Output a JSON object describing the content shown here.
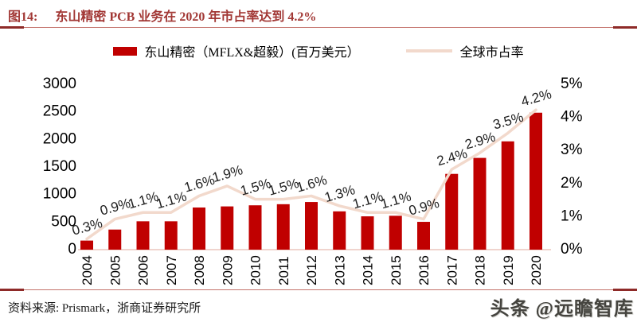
{
  "header": {
    "label": "图14:",
    "title": "东山精密 PCB 业务在 2020 年市占率达到 4.2%"
  },
  "legend": {
    "bar_label": "东山精密（MFLX&超毅）(百万美元）",
    "line_label": "全球市占率"
  },
  "footer": {
    "source": "资料来源: Prismark，浙商证券研究所",
    "watermark_brand": "头条",
    "watermark_handle": "@远瞻智库"
  },
  "colors": {
    "bar": "#C00000",
    "line": "#F2D9CC",
    "accent_thick": "#8E2A28",
    "accent_thin": "#C4736C",
    "axis_line": "#ECC6BD",
    "title": "#A23835"
  },
  "chart_data": {
    "type": "bar+line",
    "title": "东山精密 PCB 业务在 2020 年市占率达到 4.2%",
    "categories": [
      "2004",
      "2005",
      "2006",
      "2007",
      "2008",
      "2009",
      "2010",
      "2011",
      "2012",
      "2013",
      "2014",
      "2015",
      "2016",
      "2017",
      "2018",
      "2019",
      "2020"
    ],
    "series": [
      {
        "name": "东山精密（MFLX&超毅）(百万美元）",
        "type": "bar",
        "axis": "left",
        "color": "#C00000",
        "values": [
          150,
          350,
          500,
          500,
          750,
          770,
          790,
          810,
          850,
          680,
          590,
          600,
          490,
          1360,
          1650,
          1950,
          2470
        ]
      },
      {
        "name": "全球市占率",
        "type": "line",
        "axis": "right",
        "color": "#F2D9CC",
        "values": [
          0.3,
          0.9,
          1.1,
          1.1,
          1.6,
          1.9,
          1.5,
          1.5,
          1.6,
          1.3,
          1.1,
          1.1,
          0.9,
          2.4,
          2.9,
          3.5,
          4.2
        ],
        "point_labels": [
          "0.3%",
          "0.9%",
          "1.1%",
          "1.1%",
          "1.6%",
          "1.9%",
          "1.5%",
          "1.5%",
          "1.6%",
          "1.3%",
          "1.1%",
          "1.1%",
          "0.9%",
          "2.4%",
          "2.9%",
          "3.5%",
          "4.2%"
        ]
      }
    ],
    "left_axis": {
      "min": 0,
      "max": 3000,
      "ticks": [
        "3000",
        "2500",
        "2000",
        "1500",
        "1000",
        "500",
        "0"
      ]
    },
    "right_axis": {
      "min": 0,
      "max": 5,
      "ticks": [
        "5%",
        "4%",
        "3%",
        "2%",
        "1%",
        "0%"
      ]
    },
    "grid": false,
    "legend_position": "top"
  }
}
